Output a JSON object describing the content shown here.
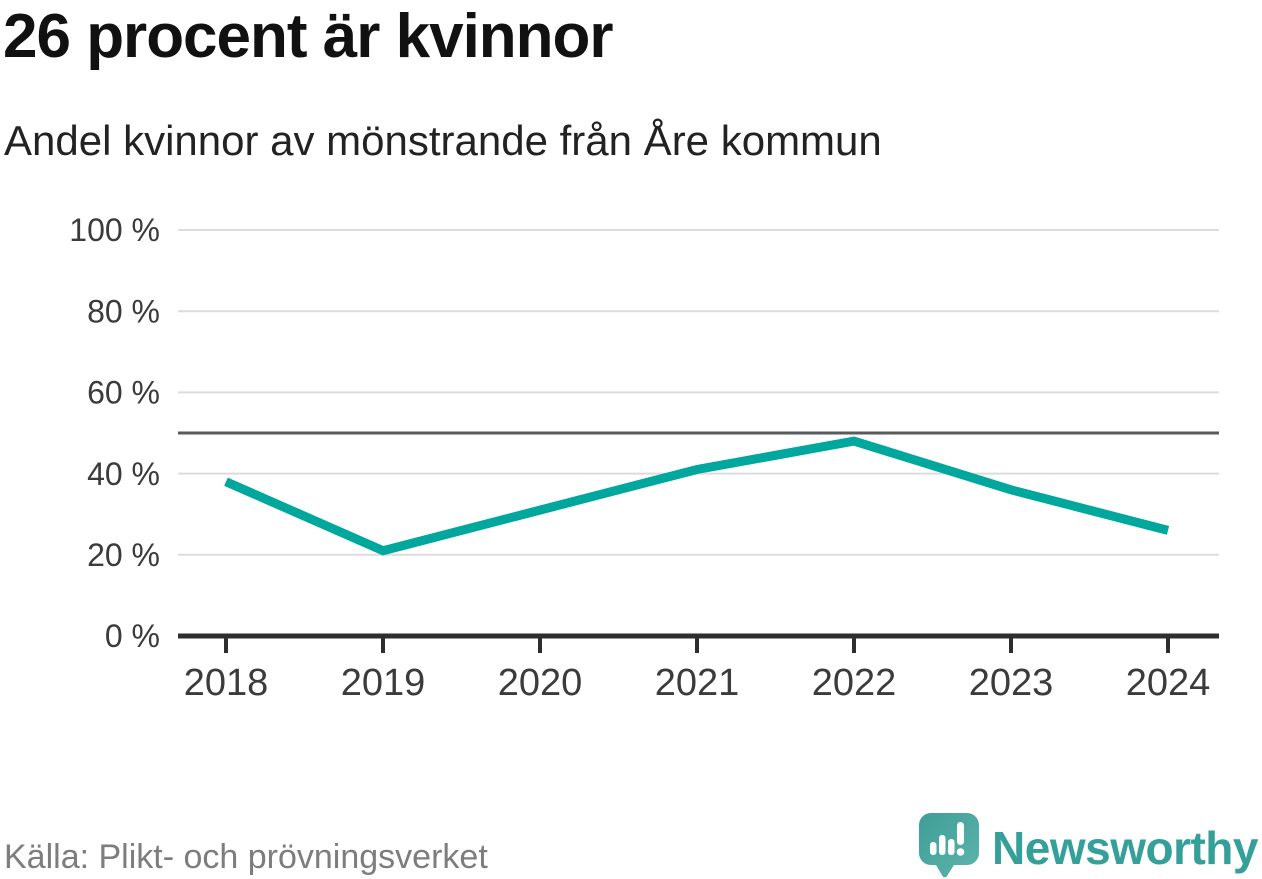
{
  "header": {
    "title": "26 procent är kvinnor",
    "subtitle": "Andel kvinnor av mönstrande från Åre kommun"
  },
  "chart_data": {
    "type": "line",
    "x": [
      "2018",
      "2019",
      "2020",
      "2021",
      "2022",
      "2023",
      "2024"
    ],
    "series": [
      {
        "name": "Andel kvinnor",
        "values": [
          38,
          21,
          31,
          41,
          48,
          36,
          26
        ],
        "color": "#00a79c"
      }
    ],
    "unit": "%",
    "ylim": [
      0,
      100
    ],
    "yticks": [
      100,
      80,
      60,
      40,
      20,
      0
    ],
    "ytick_suffix": " %",
    "reference_line": {
      "value": 50,
      "color": "#595a5c"
    },
    "grid": "horizontal",
    "legend": "none",
    "title": "26 procent är kvinnor",
    "subtitle": "Andel kvinnor av mönstrande från Åre kommun"
  },
  "footer": {
    "source": "Källa: Plikt- och prövningsverket",
    "brand": "Newsworthy"
  },
  "colors": {
    "line": "#00a79c",
    "grid": "#dcdcdc",
    "axis": "#2e2e2e",
    "reference_line": "#595a5c",
    "title": "#111111",
    "subtitle": "#222222",
    "source": "#7d7d7d",
    "brand_teal": "#35a09a",
    "logo_teal_dark": "#3f9d97",
    "logo_teal_light": "#5db5ac"
  }
}
